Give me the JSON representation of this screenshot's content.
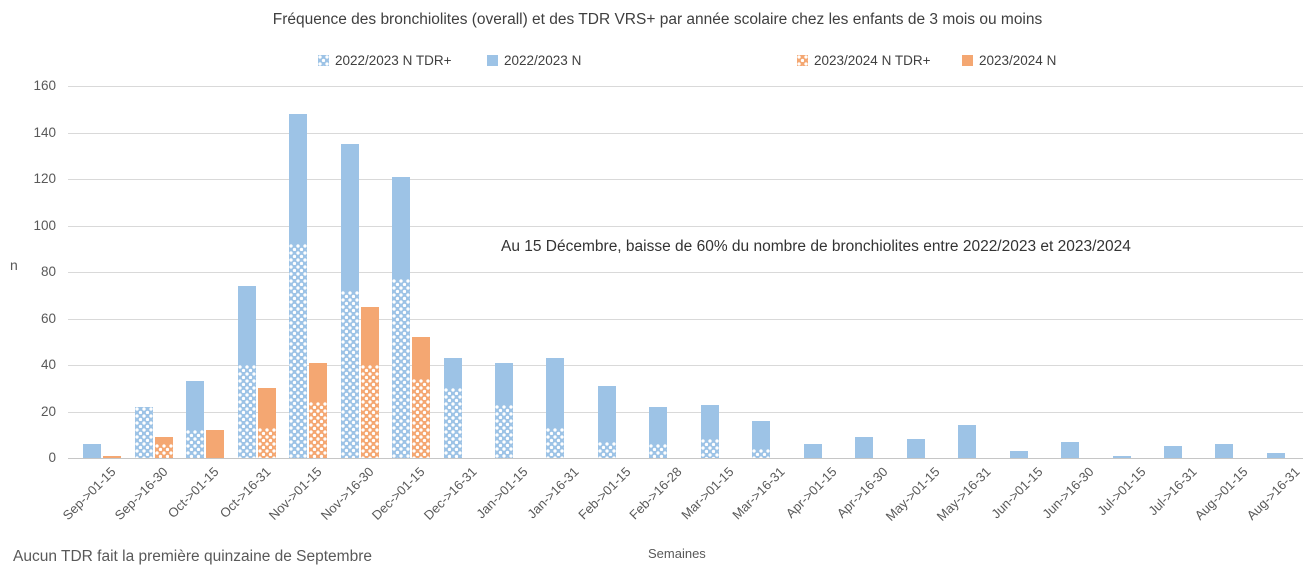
{
  "chart_data": {
    "type": "bar",
    "stacked": true,
    "title": "Fréquence des bronchiolites (overall) et des TDR VRS+ par année scolaire chez les enfants de 3 mois ou moins",
    "xlabel": "Semaines",
    "ylabel": "n",
    "ylim": [
      0,
      160
    ],
    "yticks": [
      0,
      20,
      40,
      60,
      80,
      100,
      120,
      140,
      160
    ],
    "grid": true,
    "legend_position": "top",
    "annotation": "Au 15 Décembre, baisse de 60% du nombre de bronchiolites entre 2022/2023 et 2023/2024",
    "footnote": "Aucun TDR fait la première quinzaine de Septembre",
    "categories": [
      "Sep->01-15",
      "Sep->16-30",
      "Oct->01-15",
      "Oct->16-31",
      "Nov->01-15",
      "Nov->16-30",
      "Dec->01-15",
      "Dec->16-31",
      "Jan->01-15",
      "Jan->16-31",
      "Feb->01-15",
      "Feb->16-28",
      "Mar->01-15",
      "Mar->16-31",
      "Apr->01-15",
      "Apr->16-30",
      "May->01-15",
      "May->16-31",
      "Jun->01-15",
      "Jun->16-30",
      "Jul->01-15",
      "Jul->16-31",
      "Aug->01-15",
      "Aug->16-31"
    ],
    "series": [
      {
        "name": "2022/2023 N TDR+",
        "stack": "2022/2023",
        "color": "#9dc3e6",
        "pattern": "dotted",
        "values": [
          0,
          22,
          12,
          40,
          92,
          72,
          77,
          30,
          23,
          13,
          7,
          6,
          8,
          4,
          0,
          0,
          0,
          0,
          0,
          0,
          0,
          0,
          0,
          0
        ]
      },
      {
        "name": "2022/2023 N",
        "stack": "2022/2023",
        "color": "#9dc3e6",
        "pattern": "solid",
        "values": [
          6,
          0,
          21,
          34,
          56,
          63,
          44,
          13,
          18,
          30,
          24,
          16,
          15,
          12,
          6,
          9,
          8,
          14,
          3,
          7,
          1,
          5,
          6,
          2
        ]
      },
      {
        "name": "2023/2024 N TDR+",
        "stack": "2023/2024",
        "color": "#f4a772",
        "pattern": "dotted",
        "values": [
          0,
          6,
          0,
          13,
          24,
          40,
          34,
          0,
          0,
          0,
          0,
          0,
          0,
          0,
          0,
          0,
          0,
          0,
          0,
          0,
          0,
          0,
          0,
          0
        ]
      },
      {
        "name": "2023/2024 N",
        "stack": "2023/2024",
        "color": "#f4a772",
        "pattern": "solid",
        "values": [
          1,
          3,
          12,
          17,
          17,
          25,
          18,
          0,
          0,
          0,
          0,
          0,
          0,
          0,
          0,
          0,
          0,
          0,
          0,
          0,
          0,
          0,
          0,
          0
        ]
      }
    ],
    "stack_totals": {
      "2022/2023": [
        6,
        22,
        33,
        74,
        148,
        135,
        121,
        43,
        41,
        43,
        31,
        22,
        23,
        16,
        6,
        9,
        8,
        14,
        3,
        7,
        1,
        5,
        6,
        2
      ],
      "2023/2024": [
        1,
        9,
        12,
        30,
        41,
        65,
        52,
        0,
        0,
        0,
        0,
        0,
        0,
        0,
        0,
        0,
        0,
        0,
        0,
        0,
        0,
        0,
        0,
        0
      ]
    }
  }
}
